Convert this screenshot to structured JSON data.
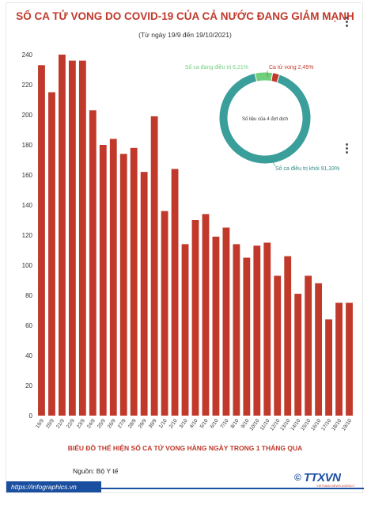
{
  "header": {
    "title": "SỐ CA TỬ VONG DO COVID-19 CỦA CẢ NƯỚC ĐANG GIẢM MẠNH",
    "subtitle": "(Từ ngày 19/9 đến 19/10/2021)"
  },
  "chart_data": [
    {
      "type": "bar",
      "title": "BIỂU ĐỒ THỂ HIỆN SỐ CA TỬ VONG HÀNG NGÀY TRONG 1 THÁNG QUA",
      "xlabel": "",
      "ylabel": "",
      "ylim": [
        0,
        240
      ],
      "yticks": [
        0,
        20,
        40,
        60,
        80,
        100,
        120,
        140,
        160,
        180,
        200,
        220,
        240
      ],
      "categories": [
        "19/9",
        "20/9",
        "21/9",
        "22/9",
        "23/9",
        "24/9",
        "25/9",
        "26/9",
        "27/9",
        "28/9",
        "29/9",
        "30/9",
        "1/10",
        "2/10",
        "3/10",
        "4/10",
        "5/10",
        "6/10",
        "7/10",
        "8/10",
        "9/10",
        "10/10",
        "11/10",
        "12/10",
        "13/10",
        "14/10",
        "15/10",
        "16/10",
        "17/10",
        "18/10",
        "19/10"
      ],
      "values": [
        233,
        215,
        240,
        236,
        236,
        203,
        180,
        184,
        174,
        178,
        162,
        199,
        136,
        164,
        114,
        130,
        134,
        119,
        125,
        114,
        105,
        113,
        115,
        93,
        106,
        81,
        93,
        88,
        64,
        75,
        75
      ],
      "bar_color": "#c0392b",
      "grid": false
    },
    {
      "type": "pie",
      "title": "",
      "center_label": "Số liệu của 4 đợt dịch",
      "slices": [
        {
          "label": "Số ca điều trị khỏi 91,33%",
          "value": 91.33,
          "color": "#3a9e9a"
        },
        {
          "label": "Số ca đang điều trị 6,21%",
          "value": 6.21,
          "color": "#6fcf7c"
        },
        {
          "label": "Ca tử vong 2,45%",
          "value": 2.45,
          "color": "#c0392b"
        }
      ]
    }
  ],
  "source": "Nguồn: Bộ Y tế",
  "footer": {
    "url": "https://infographics.vn",
    "logo": "TTXVN",
    "logo_sub": "VIETNAM NEWS AGENCY"
  }
}
